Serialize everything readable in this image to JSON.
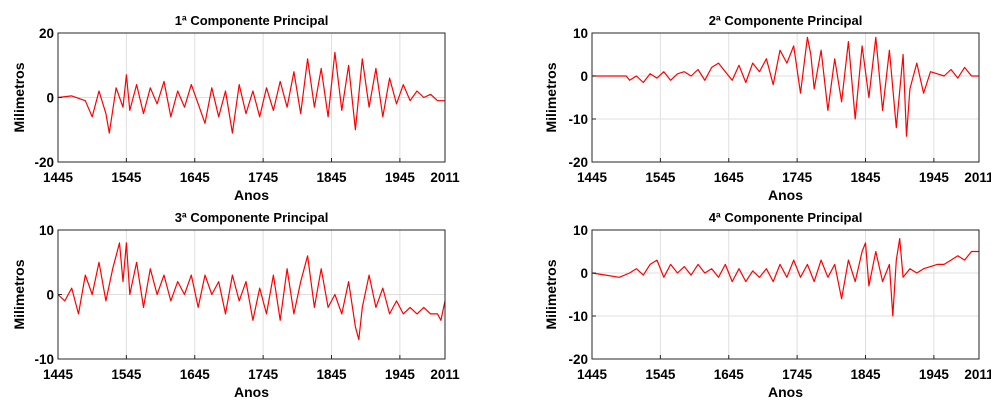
{
  "chart_data": [
    {
      "type": "line",
      "title": "1ª Componente Principal",
      "xlabel": "Anos",
      "ylabel": "Milimetros",
      "xlim": [
        1445,
        2011
      ],
      "ylim": [
        -20,
        20
      ],
      "xticks": [
        "1445",
        "1545",
        "1645",
        "1745",
        "1845",
        "1945",
        "2011"
      ],
      "yticks": [
        "-20",
        "0",
        "20"
      ],
      "grid": true,
      "color": "#ff0000",
      "x": [
        1445,
        1465,
        1485,
        1495,
        1505,
        1515,
        1520,
        1530,
        1540,
        1545,
        1550,
        1560,
        1570,
        1580,
        1590,
        1600,
        1610,
        1620,
        1630,
        1640,
        1650,
        1660,
        1670,
        1680,
        1690,
        1700,
        1710,
        1720,
        1730,
        1740,
        1750,
        1760,
        1770,
        1780,
        1790,
        1800,
        1810,
        1820,
        1830,
        1840,
        1850,
        1860,
        1870,
        1880,
        1890,
        1900,
        1910,
        1920,
        1930,
        1940,
        1950,
        1960,
        1970,
        1980,
        1990,
        2000,
        2011
      ],
      "values": [
        0,
        0.5,
        -1,
        -6,
        2,
        -5,
        -11,
        3,
        -3,
        7,
        -4,
        4,
        -5,
        3,
        -2,
        5,
        -6,
        2,
        -3,
        4,
        -2,
        -8,
        3,
        -6,
        2,
        -11,
        4,
        -5,
        2,
        -6,
        3,
        -4,
        5,
        -3,
        8,
        -5,
        12,
        -3,
        9,
        -6,
        14,
        -4,
        10,
        -10,
        12,
        -3,
        9,
        -6,
        6,
        -2,
        4,
        -1,
        2,
        0,
        1,
        -1,
        -1
      ]
    },
    {
      "type": "line",
      "title": "2ª Componente Principal",
      "xlabel": "Anos",
      "ylabel": "Milimetros",
      "xlim": [
        1445,
        2011
      ],
      "ylim": [
        -20,
        10
      ],
      "xticks": [
        "1445",
        "1545",
        "1645",
        "1745",
        "1845",
        "1945",
        "2011"
      ],
      "yticks": [
        "-20",
        "-10",
        "0",
        "10"
      ],
      "grid": true,
      "color": "#ff0000",
      "x": [
        1445,
        1480,
        1495,
        1500,
        1510,
        1520,
        1530,
        1540,
        1550,
        1560,
        1570,
        1580,
        1590,
        1600,
        1610,
        1620,
        1630,
        1640,
        1650,
        1660,
        1670,
        1680,
        1690,
        1700,
        1710,
        1720,
        1730,
        1740,
        1750,
        1760,
        1765,
        1770,
        1780,
        1790,
        1800,
        1810,
        1820,
        1830,
        1840,
        1850,
        1860,
        1870,
        1880,
        1890,
        1900,
        1905,
        1910,
        1920,
        1930,
        1940,
        1950,
        1960,
        1970,
        1980,
        1990,
        2000,
        2011
      ],
      "values": [
        0,
        0,
        0,
        -1,
        0,
        -1.5,
        0.5,
        -0.5,
        1,
        -1,
        0.5,
        1,
        0,
        1.5,
        -1,
        2,
        3,
        1,
        -1,
        2.5,
        -1.5,
        3,
        1,
        4,
        -2,
        6,
        3,
        7,
        -4,
        9,
        5,
        -3,
        6,
        -8,
        4,
        -6,
        8,
        -10,
        7,
        -5,
        9,
        -8,
        6,
        -12,
        5,
        -14,
        -3,
        3,
        -4,
        1,
        0.5,
        0,
        1.5,
        -0.5,
        2,
        0,
        0
      ]
    },
    {
      "type": "line",
      "title": "3ª Componente Principal",
      "xlabel": "Anos",
      "ylabel": "Milimetros",
      "xlim": [
        1445,
        2011
      ],
      "ylim": [
        -10,
        10
      ],
      "xticks": [
        "1445",
        "1545",
        "1645",
        "1745",
        "1845",
        "1945",
        "2011"
      ],
      "yticks": [
        "-10",
        "0",
        "10"
      ],
      "grid": true,
      "color": "#ff0000",
      "x": [
        1445,
        1455,
        1465,
        1475,
        1485,
        1495,
        1505,
        1515,
        1525,
        1535,
        1540,
        1545,
        1550,
        1560,
        1570,
        1580,
        1590,
        1600,
        1610,
        1620,
        1630,
        1640,
        1650,
        1660,
        1670,
        1680,
        1690,
        1700,
        1710,
        1720,
        1730,
        1740,
        1750,
        1760,
        1770,
        1780,
        1790,
        1800,
        1810,
        1820,
        1830,
        1840,
        1850,
        1860,
        1870,
        1880,
        1885,
        1890,
        1900,
        1910,
        1920,
        1930,
        1940,
        1950,
        1960,
        1970,
        1980,
        1990,
        2000,
        2005,
        2011
      ],
      "values": [
        0,
        -1,
        1,
        -3,
        3,
        0,
        5,
        -1,
        4,
        8,
        2,
        8,
        0,
        5,
        -2,
        4,
        0,
        3,
        -1,
        2,
        0,
        3,
        -2,
        3,
        0,
        2,
        -3,
        3,
        -1,
        2,
        -4,
        1,
        -3,
        3,
        -4,
        4,
        -3,
        2,
        6,
        -2,
        4,
        -2,
        0,
        -3,
        2,
        -5,
        -7,
        -2,
        3,
        -2,
        1,
        -3,
        -1,
        -3,
        -2,
        -3,
        -2,
        -3,
        -3,
        -4,
        -1
      ]
    },
    {
      "type": "line",
      "title": "4ª Componente Principal",
      "xlabel": "Anos",
      "ylabel": "Milimetros",
      "xlim": [
        1445,
        2011
      ],
      "ylim": [
        -20,
        10
      ],
      "xticks": [
        "1445",
        "1545",
        "1645",
        "1745",
        "1845",
        "1945",
        "2011"
      ],
      "yticks": [
        "-20",
        "-10",
        "0",
        "10"
      ],
      "grid": true,
      "color": "#ff0000",
      "x": [
        1445,
        1465,
        1485,
        1500,
        1510,
        1520,
        1530,
        1540,
        1550,
        1560,
        1570,
        1580,
        1590,
        1600,
        1610,
        1620,
        1630,
        1640,
        1650,
        1660,
        1670,
        1680,
        1690,
        1700,
        1710,
        1720,
        1730,
        1740,
        1750,
        1760,
        1770,
        1780,
        1790,
        1800,
        1810,
        1820,
        1830,
        1840,
        1845,
        1850,
        1860,
        1870,
        1880,
        1885,
        1890,
        1895,
        1900,
        1910,
        1920,
        1930,
        1940,
        1950,
        1960,
        1970,
        1980,
        1990,
        2000,
        2011
      ],
      "values": [
        0,
        -0.5,
        -1,
        0,
        1,
        -0.5,
        2,
        3,
        -1,
        2,
        0,
        1.5,
        -0.5,
        2,
        0,
        1,
        -1,
        2,
        -2,
        1,
        -2,
        0.5,
        -1,
        1,
        -2,
        2,
        -1,
        3,
        -1,
        2,
        -2,
        3,
        -1,
        2,
        -6,
        3,
        -2,
        5,
        7,
        -3,
        5,
        -2,
        2,
        -10,
        3,
        8,
        -1,
        1,
        0,
        1,
        1.5,
        2,
        2,
        3,
        4,
        3,
        5,
        5
      ]
    }
  ]
}
